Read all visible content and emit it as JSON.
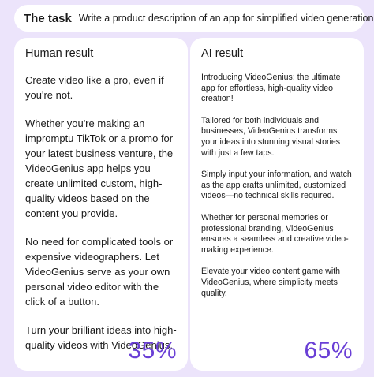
{
  "task": {
    "label": "The task",
    "text": "Write a product description of an app for simplified video generation."
  },
  "human": {
    "title": "Human result",
    "paragraphs": [
      "Create video like a pro, even if you're not.",
      "Whether you're making an impromptu TikTok or a promo for your latest business venture, the VideoGenius app helps you create unlimited custom, high-quality videos based on the content you provide.",
      "No need for complicated tools or expensive videographers. Let VideoGenius serve as your own personal video editor with the click of a button.",
      "Turn your brilliant ideas into high-quality videos with VideoGenius."
    ],
    "percent": "35%"
  },
  "ai": {
    "title": "AI result",
    "paragraphs": [
      "Introducing VideoGenius: the ultimate app for effortless, high-quality video creation!",
      "Tailored for both individuals and businesses, VideoGenius transforms your ideas into stunning visual stories with just a few taps.",
      "Simply input your information, and watch as the app crafts unlimited, customized videos—no technical skills required.",
      "Whether for personal memories or professional branding, VideoGenius ensures a seamless and creative video-making experience.",
      "Elevate your video content game with VideoGenius, where simplicity meets quality."
    ],
    "percent": "65%"
  },
  "colors": {
    "background": "#ece4fb",
    "accent": "#6a3fd6",
    "card": "#ffffff"
  }
}
